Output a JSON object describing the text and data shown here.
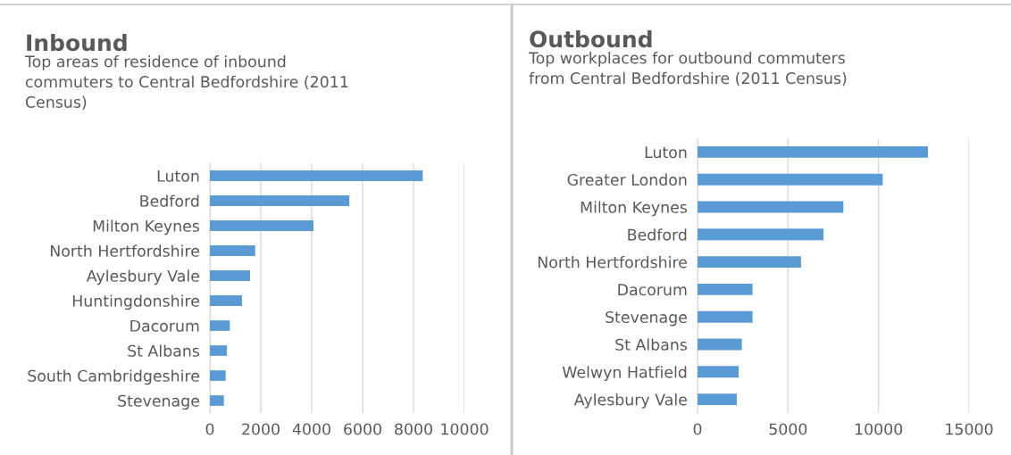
{
  "chart_data": [
    {
      "type": "bar",
      "orientation": "horizontal",
      "title": "Inbound",
      "subtitle": "Top areas of residence of inbound\ncommuters to Central Bedfordshire (2011\nCensus)",
      "categories": [
        "Luton",
        "Bedford",
        "Milton Keynes",
        "North Hertfordshire",
        "Aylesbury Vale",
        "Huntingdonshire",
        "Dacorum",
        "St Albans",
        "South Cambridgeshire",
        "Stevenage"
      ],
      "values": [
        8360,
        5480,
        4070,
        1780,
        1580,
        1260,
        780,
        670,
        620,
        550
      ],
      "color": "#5b9bd5",
      "xlim": [
        0,
        10000
      ],
      "xticks": [
        0,
        2000,
        4000,
        6000,
        8000,
        10000
      ],
      "grid": "x"
    },
    {
      "type": "bar",
      "orientation": "horizontal",
      "title": "Outbound",
      "subtitle": "Top workplaces for outbound commuters\nfrom Central Bedfordshire (2011 Census)",
      "categories": [
        "Luton",
        "Greater London",
        "Milton Keynes",
        "Bedford",
        "North Hertfordshire",
        "Dacorum",
        "Stevenage",
        "St Albans",
        "Welwyn Hatfield",
        "Aylesbury Vale"
      ],
      "values": [
        12730,
        10230,
        8060,
        6960,
        5720,
        3040,
        3040,
        2450,
        2270,
        2170
      ],
      "color": "#5b9bd5",
      "xlim": [
        0,
        15000
      ],
      "xticks": [
        0,
        5000,
        10000,
        15000
      ],
      "grid": "x"
    }
  ]
}
